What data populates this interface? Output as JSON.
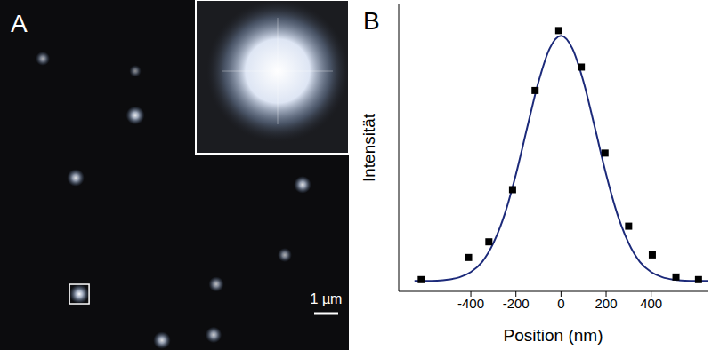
{
  "chart_data": [
    {
      "type": "image",
      "panel": "A",
      "scale_bar": "1 µm",
      "scale_bar_um": 1,
      "spots": [
        {
          "x_um": 1.78,
          "y_um": 2.44,
          "intensity": 0.5
        },
        {
          "x_um": 5.63,
          "y_um": 2.96,
          "intensity": 0.3
        },
        {
          "x_um": 5.63,
          "y_um": 4.81,
          "intensity": 0.9
        },
        {
          "x_um": 3.15,
          "y_um": 7.41,
          "intensity": 0.8
        },
        {
          "x_um": 12.59,
          "y_um": 7.7,
          "intensity": 0.8
        },
        {
          "x_um": 11.85,
          "y_um": 10.63,
          "intensity": 0.5
        },
        {
          "x_um": 9.0,
          "y_um": 11.85,
          "intensity": 0.6
        },
        {
          "x_um": 3.3,
          "y_um": 12.26,
          "intensity": 1.0,
          "boxed": true
        },
        {
          "x_um": 6.74,
          "y_um": 14.19,
          "intensity": 0.8
        },
        {
          "x_um": 8.89,
          "y_um": 13.96,
          "intensity": 0.7
        }
      ]
    },
    {
      "type": "scatter",
      "panel": "B",
      "x_label": "Position (nm)",
      "y_label": "Intensität",
      "xlim": [
        -720,
        650
      ],
      "ylim": [
        0,
        1.1
      ],
      "xticks": [
        -400,
        -200,
        0,
        200,
        400
      ],
      "yticks": [],
      "tick_labels": "x",
      "points": {
        "x": [
          -620,
          -410,
          -320,
          -215,
          -115,
          -10,
          90,
          195,
          300,
          405,
          510,
          610
        ],
        "values": [
          0.045,
          0.13,
          0.19,
          0.39,
          0.77,
          1.0,
          0.86,
          0.53,
          0.25,
          0.14,
          0.055,
          0.045
        ],
        "color": "#000000",
        "marker": "square"
      },
      "fit": {
        "type": "line",
        "color": "#1c2a7a",
        "x": [
          -650,
          -600,
          -550,
          -500,
          -450,
          -400,
          -350,
          -300,
          -250,
          -200,
          -150,
          -100,
          -50,
          0,
          50,
          100,
          150,
          200,
          250,
          300,
          350,
          400,
          450,
          500,
          550,
          600,
          650
        ],
        "values": [
          0.04,
          0.04,
          0.041,
          0.045,
          0.054,
          0.074,
          0.113,
          0.185,
          0.296,
          0.449,
          0.628,
          0.803,
          0.932,
          0.98,
          0.932,
          0.803,
          0.628,
          0.449,
          0.296,
          0.185,
          0.113,
          0.074,
          0.054,
          0.045,
          0.041,
          0.04,
          0.04
        ]
      }
    }
  ]
}
